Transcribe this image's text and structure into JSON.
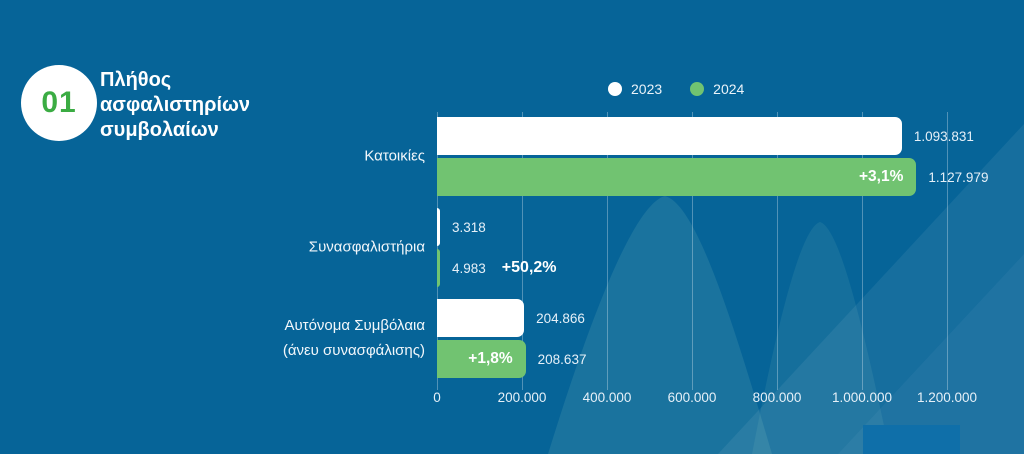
{
  "page": {
    "background": "#066498",
    "accent_green": "#71C371",
    "badge_green": "#3BAC43"
  },
  "badge": {
    "number": "01"
  },
  "title": {
    "text": "Πλήθος ασφαλιστηρίων συμβολαίων"
  },
  "legend": {
    "items": [
      {
        "label": "2023",
        "color": "#FFFFFF"
      },
      {
        "label": "2024",
        "color": "#71C371"
      }
    ]
  },
  "chart_data": {
    "type": "bar",
    "orientation": "horizontal",
    "title": "Πλήθος ασφαλιστηρίων συμβολαίων",
    "xlabel": "",
    "ylabel": "",
    "xlim": [
      0,
      1200000
    ],
    "grid": true,
    "legend_position": "top",
    "x_ticks": [
      "0",
      "200.000",
      "400.000",
      "600.000",
      "800.000",
      "1.000.000",
      "1.200.000"
    ],
    "categories": [
      "Κατοικίες",
      "Συνασφαλιστήρια",
      "Αυτόνομα Συμβόλαια (άνευ συνασφάλισης)"
    ],
    "series": [
      {
        "name": "2023",
        "color": "#FFFFFF",
        "values": [
          1093831,
          3318,
          204866
        ],
        "labels": [
          "1.093.831",
          "3.318",
          "204.866"
        ]
      },
      {
        "name": "2024",
        "color": "#71C371",
        "values": [
          1127979,
          4983,
          208637
        ],
        "labels": [
          "1.127.979",
          "4.983",
          "208.637"
        ]
      }
    ],
    "change_labels": [
      "+3,1%",
      "+50,2%",
      "+1,8%"
    ]
  }
}
